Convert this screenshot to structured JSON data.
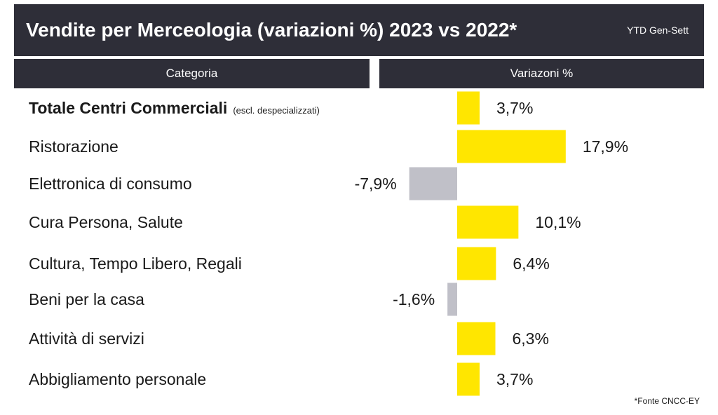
{
  "header": {
    "title": "Vendite per Merceologia (variazioni %) 2023 vs 2022*",
    "period": "YTD Gen-Sett"
  },
  "columns": {
    "category": "Categoria",
    "variation": "Variazoni %"
  },
  "colors": {
    "header_bg": "#2e2e38",
    "positive": "#ffe600",
    "negative": "#c0c0c8"
  },
  "chart_data": {
    "type": "bar",
    "orientation": "horizontal",
    "title": "Vendite per Merceologia (variazioni %) 2023 vs 2022*",
    "categories": [
      "Totale Centri Commerciali",
      "Ristorazione",
      "Elettronica di consumo",
      "Cura Persona, Salute",
      "Cultura, Tempo Libero, Regali",
      "Beni per la casa",
      "Attività di servizi",
      "Abbigliamento personale"
    ],
    "category_notes": [
      "(escl. despecializzati)",
      "",
      "",
      "",
      "",
      "",
      "",
      ""
    ],
    "values": [
      3.7,
      17.9,
      -7.9,
      10.1,
      6.4,
      -1.6,
      6.3,
      3.7
    ],
    "value_labels": [
      "3,7%",
      "17,9%",
      "-7,9%",
      "10,1%",
      "6,4%",
      "-1,6%",
      "6,3%",
      "3,7%"
    ],
    "grid": false
  },
  "footer": {
    "source": "*Fonte CNCC-EY"
  }
}
